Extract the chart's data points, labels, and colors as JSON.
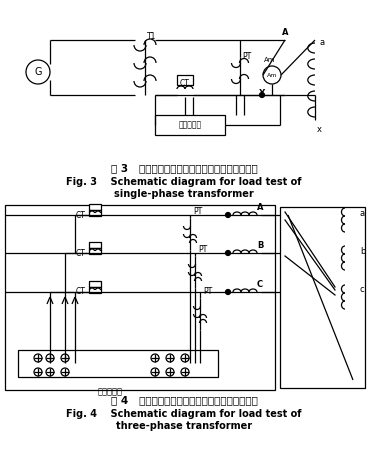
{
  "fig_width": 3.69,
  "fig_height": 4.61,
  "dpi": 100,
  "bg_color": "#ffffff",
  "title3_cn": "图 3   单相变压器短路阻抗和负载损耗测量原理图",
  "title3_en1": "Fig. 3    Schematic diagram for load test of",
  "title3_en2": "single-phase transformer",
  "title4_cn": "图 4   三相变压器短路阻抗和负载损耗测量原理图",
  "title4_en1": "Fig. 4    Schematic diagram for load test of",
  "title4_en2": "three-phase transformer",
  "line_color": "#000000"
}
